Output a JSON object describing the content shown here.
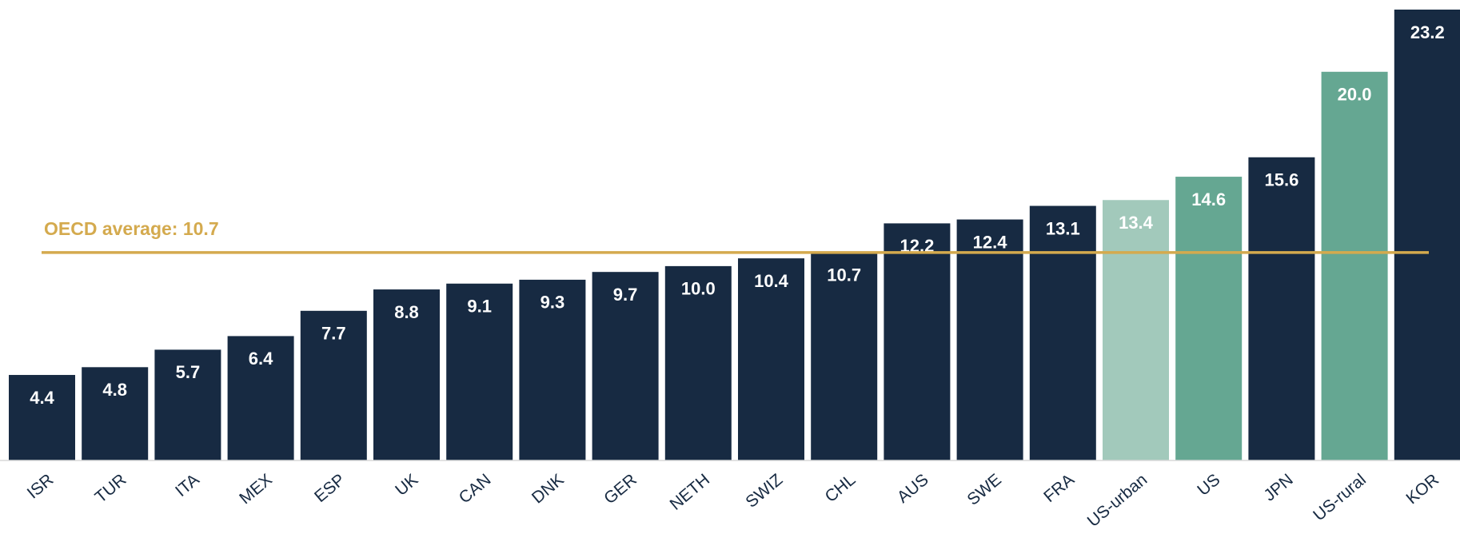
{
  "chart_data": {
    "type": "bar",
    "categories": [
      "ISR",
      "TUR",
      "ITA",
      "MEX",
      "ESP",
      "UK",
      "CAN",
      "DNK",
      "GER",
      "NETH",
      "SWIZ",
      "CHL",
      "AUS",
      "SWE",
      "FRA",
      "US-urban",
      "US",
      "JPN",
      "US-rural",
      "KOR"
    ],
    "values": [
      4.4,
      4.8,
      5.7,
      6.4,
      7.7,
      8.8,
      9.1,
      9.3,
      9.7,
      10.0,
      10.4,
      10.7,
      12.2,
      12.4,
      13.1,
      13.4,
      14.6,
      15.6,
      20.0,
      23.2
    ],
    "value_labels": [
      "4.4",
      "4.8",
      "5.7",
      "6.4",
      "7.7",
      "8.8",
      "9.1",
      "9.3",
      "9.7",
      "10.0",
      "10.4",
      "10.7",
      "12.2",
      "12.4",
      "13.1",
      "13.4",
      "14.6",
      "15.6",
      "20.0",
      "23.2"
    ],
    "colors": [
      "#172a42",
      "#172a42",
      "#172a42",
      "#172a42",
      "#172a42",
      "#172a42",
      "#172a42",
      "#172a42",
      "#172a42",
      "#172a42",
      "#172a42",
      "#172a42",
      "#172a42",
      "#172a42",
      "#172a42",
      "#a2c9bb",
      "#65a792",
      "#172a42",
      "#65a792",
      "#172a42"
    ],
    "reference_line": {
      "label": "OECD average: 10.7",
      "value": 10.7,
      "color": "#d4aa4e"
    }
  }
}
